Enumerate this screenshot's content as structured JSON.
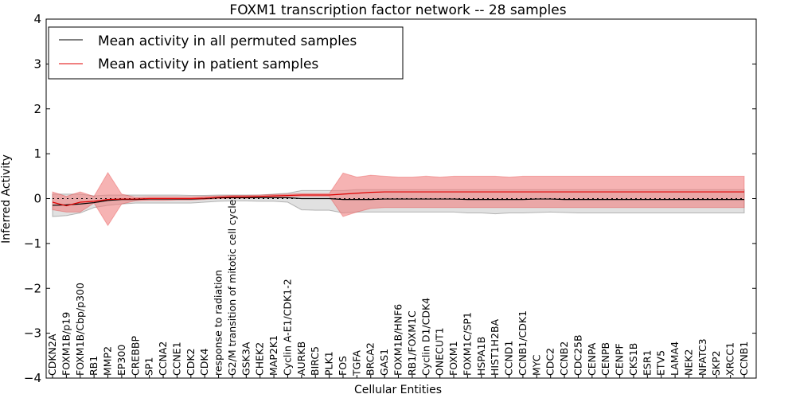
{
  "chart_data": {
    "type": "line",
    "title": "FOXM1 transcription factor network -- 28 samples",
    "xlabel": "Cellular Entities",
    "ylabel": "Inferred Activity",
    "ylim": [
      -4,
      4
    ],
    "yticks": [
      -4,
      -3,
      -2,
      -1,
      0,
      1,
      2,
      3,
      4
    ],
    "grid": false,
    "legend_position": "top-left",
    "categories": [
      "CDKN2A",
      "FOXM1B/p19",
      "FOXM1B/Cbp/p300",
      "RB1",
      "MMP2",
      "EP300",
      "CREBBP",
      "SP1",
      "CCNA2",
      "CCNE1",
      "CDK2",
      "CDK4",
      "response to radiation",
      "G2/M transition of mitotic cell cycle",
      "GSK3A",
      "CHEK2",
      "MAP2K1",
      "Cyclin A-E1/CDK1-2",
      "AURKB",
      "BIRC5",
      "PLK1",
      "FOS",
      "TGFA",
      "BRCA2",
      "GAS1",
      "FOXM1B/HNF6",
      "RB1/FOXM1C",
      "Cyclin D1/CDK4",
      "ONECUT1",
      "FOXM1",
      "FOXM1C/SP1",
      "HSPA1B",
      "HIST1H2BA",
      "CCND1",
      "CCNB1/CDK1",
      "MYC",
      "CDC2",
      "CCNB2",
      "CDC25B",
      "CENPA",
      "CENPB",
      "CENPF",
      "CKS1B",
      "ESR1",
      "ETV5",
      "LAMA4",
      "NEK2",
      "NFATC3",
      "SKP2",
      "XRCC1",
      "CCNB1"
    ],
    "series": [
      {
        "name": "Mean activity in all permuted samples",
        "color": "#000000",
        "band_color": "#c8c8c8",
        "values": [
          -0.15,
          -0.14,
          -0.12,
          -0.09,
          -0.04,
          -0.02,
          -0.02,
          -0.01,
          -0.01,
          -0.01,
          -0.01,
          0.0,
          0.02,
          0.02,
          0.02,
          0.02,
          0.02,
          0.02,
          0.0,
          0.0,
          0.0,
          -0.02,
          -0.02,
          -0.02,
          -0.01,
          -0.01,
          -0.01,
          -0.01,
          -0.01,
          -0.01,
          -0.02,
          -0.02,
          -0.02,
          -0.02,
          -0.02,
          -0.01,
          -0.01,
          -0.02,
          -0.02,
          -0.02,
          -0.02,
          -0.02,
          -0.02,
          -0.02,
          -0.02,
          -0.02,
          -0.02,
          -0.02,
          -0.02,
          -0.02,
          -0.02
        ],
        "lower": [
          -0.4,
          -0.38,
          -0.32,
          -0.2,
          -0.15,
          -0.12,
          -0.1,
          -0.1,
          -0.1,
          -0.1,
          -0.1,
          -0.08,
          -0.06,
          -0.05,
          -0.05,
          -0.06,
          -0.06,
          -0.08,
          -0.25,
          -0.26,
          -0.26,
          -0.32,
          -0.3,
          -0.3,
          -0.3,
          -0.3,
          -0.3,
          -0.3,
          -0.3,
          -0.3,
          -0.32,
          -0.32,
          -0.34,
          -0.32,
          -0.32,
          -0.31,
          -0.3,
          -0.31,
          -0.32,
          -0.32,
          -0.32,
          -0.32,
          -0.32,
          -0.32,
          -0.32,
          -0.32,
          -0.32,
          -0.32,
          -0.32,
          -0.32,
          -0.32
        ],
        "upper": [
          0.1,
          0.1,
          0.1,
          0.06,
          0.08,
          0.08,
          0.08,
          0.08,
          0.08,
          0.08,
          0.07,
          0.07,
          0.08,
          0.08,
          0.08,
          0.08,
          0.1,
          0.12,
          0.18,
          0.18,
          0.18,
          0.18,
          0.2,
          0.2,
          0.2,
          0.2,
          0.2,
          0.2,
          0.2,
          0.2,
          0.2,
          0.2,
          0.2,
          0.2,
          0.2,
          0.2,
          0.2,
          0.2,
          0.2,
          0.2,
          0.2,
          0.2,
          0.2,
          0.2,
          0.2,
          0.2,
          0.2,
          0.2,
          0.2,
          0.2,
          0.2
        ]
      },
      {
        "name": "Mean activity in patient samples",
        "color": "#e00000",
        "band_color": "#f08080",
        "values": [
          -0.08,
          -0.16,
          -0.08,
          -0.06,
          -0.02,
          -0.01,
          -0.01,
          0.0,
          0.0,
          0.0,
          0.0,
          0.01,
          0.03,
          0.04,
          0.04,
          0.05,
          0.06,
          0.07,
          0.08,
          0.08,
          0.08,
          0.1,
          0.12,
          0.14,
          0.15,
          0.15,
          0.15,
          0.15,
          0.15,
          0.15,
          0.15,
          0.15,
          0.15,
          0.15,
          0.15,
          0.15,
          0.15,
          0.15,
          0.15,
          0.15,
          0.15,
          0.15,
          0.15,
          0.15,
          0.15,
          0.15,
          0.15,
          0.15,
          0.15,
          0.15,
          0.15
        ],
        "lower": [
          -0.25,
          -0.3,
          -0.3,
          -0.1,
          -0.6,
          -0.12,
          -0.05,
          -0.04,
          -0.04,
          -0.03,
          -0.03,
          -0.02,
          0.0,
          0.01,
          0.01,
          0.02,
          0.03,
          0.04,
          0.05,
          0.05,
          0.05,
          -0.4,
          -0.3,
          -0.22,
          -0.2,
          -0.2,
          -0.2,
          -0.2,
          -0.2,
          -0.2,
          -0.2,
          -0.2,
          -0.2,
          -0.2,
          -0.2,
          -0.2,
          -0.2,
          -0.2,
          -0.2,
          -0.2,
          -0.2,
          -0.2,
          -0.2,
          -0.2,
          -0.2,
          -0.2,
          -0.2,
          -0.2,
          -0.2,
          -0.2,
          -0.2
        ],
        "upper": [
          0.15,
          0.05,
          0.15,
          0.05,
          0.58,
          0.1,
          0.03,
          0.04,
          0.04,
          0.04,
          0.04,
          0.05,
          0.06,
          0.07,
          0.07,
          0.08,
          0.09,
          0.1,
          0.11,
          0.11,
          0.11,
          0.57,
          0.48,
          0.52,
          0.5,
          0.48,
          0.48,
          0.5,
          0.48,
          0.5,
          0.5,
          0.5,
          0.5,
          0.48,
          0.5,
          0.5,
          0.5,
          0.5,
          0.5,
          0.5,
          0.5,
          0.5,
          0.5,
          0.5,
          0.5,
          0.5,
          0.5,
          0.5,
          0.5,
          0.5,
          0.5
        ]
      }
    ]
  }
}
